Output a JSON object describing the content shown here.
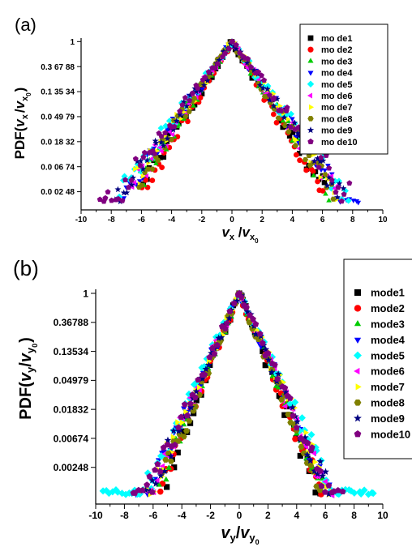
{
  "chart_data": [
    {
      "panel_label": "(a)",
      "type": "scatter",
      "ylabel": {
        "pre": "PDF(",
        "v": "v",
        "sub": "x",
        "slash": "/",
        "v2": "v",
        "sub2": "x",
        "subsub": "0",
        "post": ")"
      },
      "xlabel": {
        "v": "v",
        "sub": "x",
        "slash": " /",
        "v2": "v",
        "sub2": "x",
        "subsub": "0"
      },
      "xlim": [
        -10,
        10
      ],
      "ylim": [
        0.0012,
        1.15
      ],
      "yscale": "log",
      "xticks": [
        -10,
        -8,
        -6,
        -4,
        -2,
        0,
        2,
        4,
        6,
        8,
        10
      ],
      "xtick_labels": [
        "-10",
        "-8",
        "-6",
        "-4",
        "-2",
        "0",
        "2",
        "4",
        "6",
        "8",
        "10"
      ],
      "yticks": [
        1,
        0.36788,
        0.13534,
        0.04979,
        0.01832,
        0.00674,
        0.00248
      ],
      "ytick_labels": [
        "1",
        "0.3 67 88",
        "0.1 35 34",
        "0.0 49 79",
        "0.0 18 32",
        "0.0 06 74",
        "0.0 02 48"
      ],
      "series": [
        {
          "name": "mo de1",
          "color": "#000000",
          "marker": "square",
          "slope": 0.95,
          "xmin": -5.9,
          "xmax": 6.4
        },
        {
          "name": "mo de2",
          "color": "#ff0000",
          "marker": "circle",
          "slope": 1.0,
          "xmin": -6.0,
          "xmax": 6.2
        },
        {
          "name": "mo de3",
          "color": "#00cc00",
          "marker": "triangle-up",
          "slope": 0.92,
          "xmin": -6.1,
          "xmax": 6.6
        },
        {
          "name": "mo de4",
          "color": "#0000ff",
          "marker": "triangle-down",
          "slope": 0.85,
          "xmin": -7.2,
          "xmax": 8.6
        },
        {
          "name": "mo de5",
          "color": "#00ffff",
          "marker": "diamond",
          "slope": 0.82,
          "xmin": -7.5,
          "xmax": 7.8
        },
        {
          "name": "mo de6",
          "color": "#ff00ff",
          "marker": "triangle-left",
          "slope": 0.88,
          "xmin": -6.8,
          "xmax": 7.2
        },
        {
          "name": "mo de7",
          "color": "#ffff00",
          "marker": "triangle-right",
          "slope": 0.86,
          "xmin": -6.5,
          "xmax": 7.0
        },
        {
          "name": "mo de8",
          "color": "#808000",
          "marker": "hexagon",
          "slope": 0.9,
          "xmin": -6.2,
          "xmax": 6.8
        },
        {
          "name": "mo de9",
          "color": "#000080",
          "marker": "star",
          "slope": 0.84,
          "xmin": -7.8,
          "xmax": 7.4
        },
        {
          "name": "mo de10",
          "color": "#800080",
          "marker": "pentagon",
          "slope": 0.8,
          "xmin": -8.8,
          "xmax": 7.9
        }
      ]
    },
    {
      "panel_label": "(b)",
      "type": "scatter",
      "ylabel": {
        "pre": "PDF(",
        "v": "v",
        "sub": "y",
        "slash": "/",
        "v2": "v",
        "sub2": "y",
        "subsub": "0",
        "post": ")"
      },
      "xlabel": {
        "v": "v",
        "sub": "y",
        "slash": "/",
        "v2": "v",
        "sub2": "y",
        "subsub": "0"
      },
      "xlim": [
        -10,
        10
      ],
      "ylim": [
        0.0007,
        1.15
      ],
      "yscale": "log",
      "xticks": [
        -10,
        -8,
        -6,
        -4,
        -2,
        0,
        2,
        4,
        6,
        8,
        10
      ],
      "xtick_labels": [
        "-10",
        "-8",
        "-6",
        "-4",
        "-2",
        "0",
        "2",
        "4",
        "6",
        "8",
        "10"
      ],
      "yticks": [
        1,
        0.36788,
        0.13534,
        0.04979,
        0.01832,
        0.00674,
        0.00248
      ],
      "ytick_labels": [
        "1",
        "0.36788",
        "0.13534",
        "0.04979",
        "0.01832",
        "0.00674",
        "0.00248"
      ],
      "series": [
        {
          "name": "mode1",
          "color": "#000000",
          "marker": "square",
          "slope": 1.25,
          "xmin": -5.2,
          "xmax": 5.6
        },
        {
          "name": "mode2",
          "color": "#ff0000",
          "marker": "circle",
          "slope": 1.2,
          "xmin": -5.5,
          "xmax": 5.8
        },
        {
          "name": "mode3",
          "color": "#00cc00",
          "marker": "triangle-up",
          "slope": 1.18,
          "xmin": -5.6,
          "xmax": 5.9
        },
        {
          "name": "mode4",
          "color": "#0000ff",
          "marker": "triangle-down",
          "slope": 1.1,
          "xmin": -7.2,
          "xmax": 6.4
        },
        {
          "name": "mode5",
          "color": "#00ffff",
          "marker": "diamond",
          "slope": 1.05,
          "xmin": -9.5,
          "xmax": 9.5
        },
        {
          "name": "mode6",
          "color": "#ff00ff",
          "marker": "triangle-left",
          "slope": 1.12,
          "xmin": -6.5,
          "xmax": 6.5
        },
        {
          "name": "mode7",
          "color": "#ffff00",
          "marker": "triangle-right",
          "slope": 1.1,
          "xmin": -6.8,
          "xmax": 6.6
        },
        {
          "name": "mode8",
          "color": "#808000",
          "marker": "hexagon",
          "slope": 1.2,
          "xmin": -5.4,
          "xmax": 5.6
        },
        {
          "name": "mode9",
          "color": "#000080",
          "marker": "star",
          "slope": 1.1,
          "xmin": -6.7,
          "xmax": 6.4
        },
        {
          "name": "mode10",
          "color": "#800080",
          "marker": "pentagon",
          "slope": 1.08,
          "xmin": -7.4,
          "xmax": 7.2
        }
      ]
    }
  ]
}
